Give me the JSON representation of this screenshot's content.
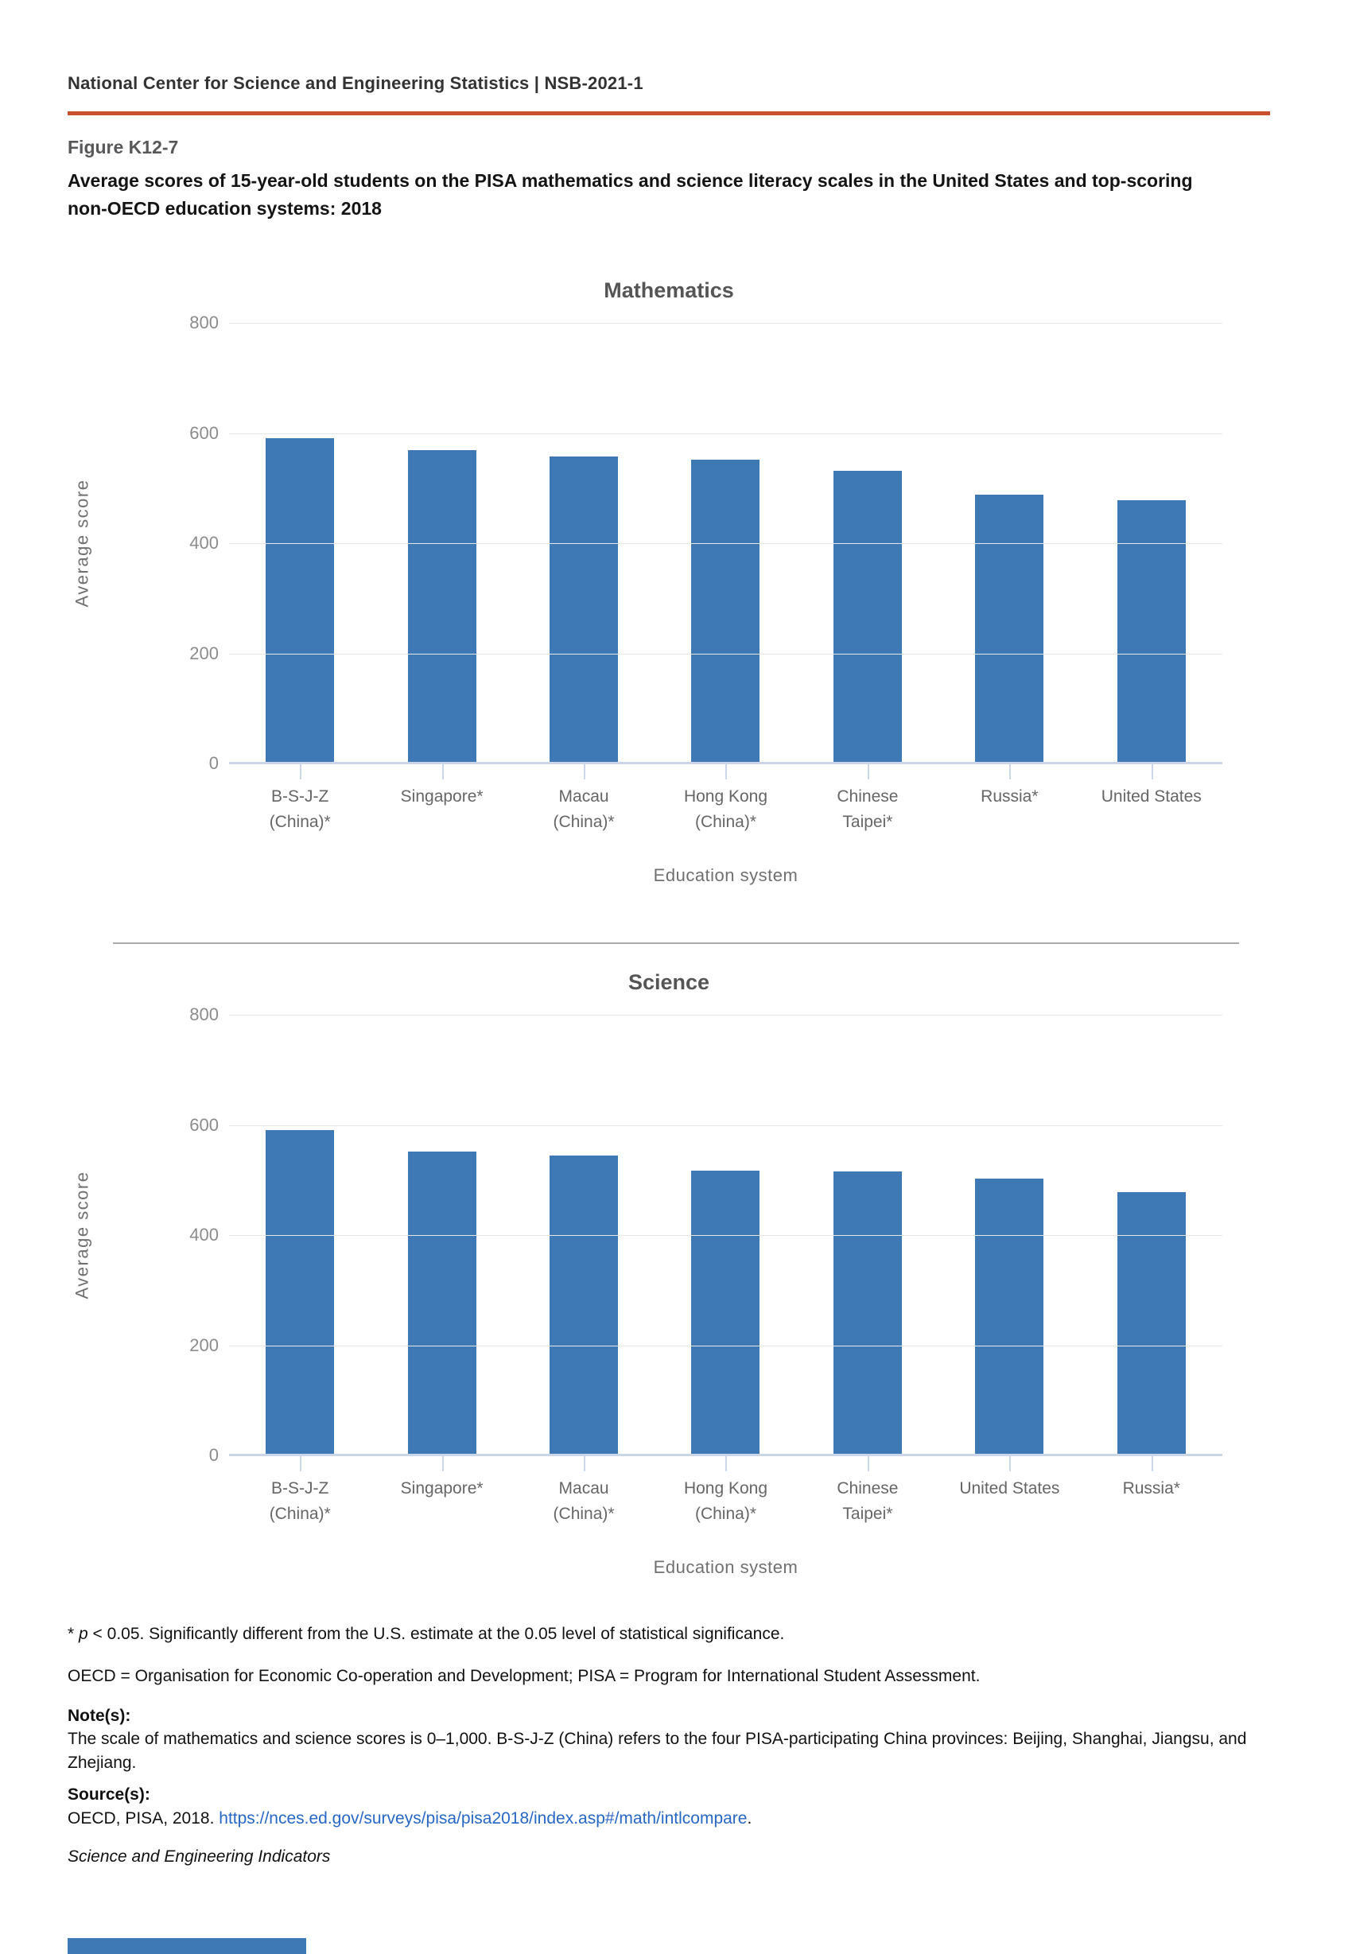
{
  "page": {
    "header": "National Center for Science and Engineering Statistics  |  NSB-2021-1",
    "figure_label": "Figure K12-7",
    "title": "Average scores of 15-year-old students on the PISA mathematics and science literacy scales in the United States and top-scoring non-OECD education systems: 2018"
  },
  "colors": {
    "bar": "#3e79b5",
    "header_rule": "#c8502f",
    "axis_line": "#ccd6eb",
    "gridline": "#e7e7e7",
    "link": "#2767c6"
  },
  "chart_data": [
    {
      "type": "bar",
      "title": "Mathematics",
      "categories": [
        "B-S-J-Z\n(China)*",
        "Singapore*",
        "Macau\n(China)*",
        "Hong Kong\n(China)*",
        "Chinese\nTaipei*",
        "Russia*",
        "United States"
      ],
      "values": [
        591,
        569,
        558,
        551,
        531,
        488,
        478
      ],
      "xlabel": "Education system",
      "ylabel": "Average score",
      "ylim": [
        0,
        800
      ],
      "yticks": [
        0,
        200,
        400,
        600,
        800
      ],
      "grid": true,
      "legend": "none",
      "bar_color": "#3e79b5"
    },
    {
      "type": "bar",
      "title": "Science",
      "categories": [
        "B-S-J-Z\n(China)*",
        "Singapore*",
        "Macau\n(China)*",
        "Hong Kong\n(China)*",
        "Chinese\nTaipei*",
        "United States",
        "Russia*"
      ],
      "values": [
        590,
        551,
        544,
        517,
        516,
        502,
        478
      ],
      "xlabel": "Education system",
      "ylabel": "Average score",
      "ylim": [
        0,
        800
      ],
      "yticks": [
        0,
        200,
        400,
        600,
        800
      ],
      "grid": true,
      "legend": "none",
      "bar_color": "#3e79b5"
    }
  ],
  "footnotes": {
    "significance_prefix": "* ",
    "significance_italic": "p",
    "significance_rest": " < 0.05. Significantly different from the U.S. estimate at the 0.05 level of statistical significance.",
    "definitions": "OECD = Organisation for Economic Co-operation and Development; PISA = Program for International Student Assessment.",
    "notes_heading": "Note(s):",
    "notes_body": "The scale of mathematics and science scores is 0–1,000. B-S-J-Z (China) refers to the four PISA-participating China provinces: Beijing, Shanghai, Jiangsu, and Zhejiang.",
    "source_heading": "Source(s):",
    "source_prefix": "OECD, PISA, 2018. ",
    "source_link": "https://nces.ed.gov/surveys/pisa/pisa2018/index.asp#/math/intlcompare",
    "source_suffix": ".",
    "attribution": "Science and Engineering Indicators"
  }
}
